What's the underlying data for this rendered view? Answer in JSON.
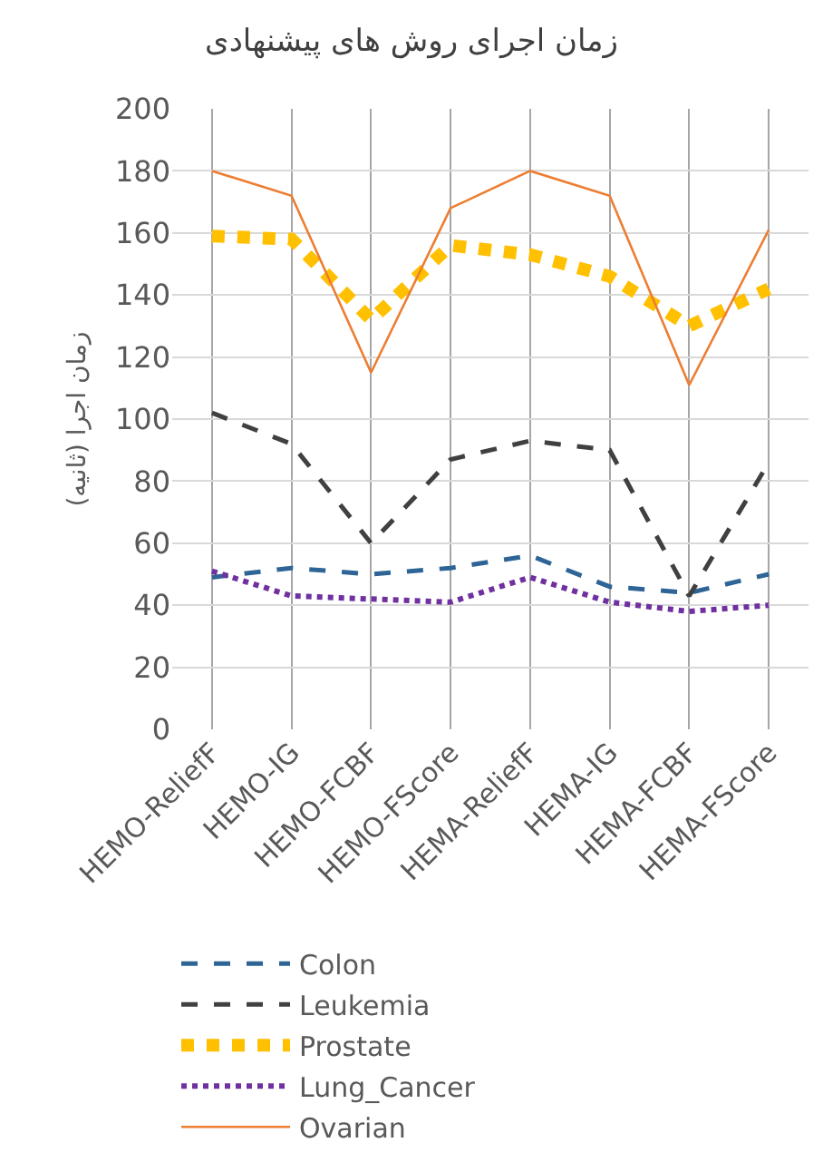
{
  "chart_data": {
    "type": "line",
    "title": "زمان اجرای روش های پیشنهادی",
    "ylabel": "زمان اجرا (ثانیه)",
    "categories": [
      "HEMO-ReliefF",
      "HEMO-IG",
      "HEMO-FCBF",
      "HEMO-FScore",
      "HEMA-ReliefF",
      "HEMA-IG",
      "HEMA-FCBF",
      "HEMA-FScore"
    ],
    "series": [
      {
        "name": "Colon",
        "color": "#2e6596",
        "line_style": "dashed",
        "values": [
          49,
          52,
          50,
          52,
          56,
          46,
          44,
          50
        ]
      },
      {
        "name": "Leukemia",
        "color": "#404040",
        "line_style": "dashed",
        "values": [
          102,
          92,
          60,
          87,
          93,
          90,
          43,
          86
        ]
      },
      {
        "name": "Prostate",
        "color": "#ffc000",
        "line_style": "dotted",
        "values": [
          159,
          158,
          132,
          156,
          153,
          146,
          130,
          142
        ]
      },
      {
        "name": "Lung_Cancer",
        "color": "#7030a0",
        "line_style": "dotted",
        "values": [
          51,
          43,
          42,
          41,
          49,
          41,
          38,
          40
        ]
      },
      {
        "name": "Ovarian",
        "color": "#ed7d31",
        "line_style": "solid",
        "values": [
          180,
          172,
          115,
          168,
          180,
          172,
          111,
          161
        ]
      }
    ],
    "ylim": [
      0,
      200
    ],
    "yticks": [
      0,
      20,
      40,
      60,
      80,
      100,
      120,
      140,
      160,
      180,
      200
    ],
    "grid": true,
    "legend": "bottom",
    "marker": "none"
  }
}
